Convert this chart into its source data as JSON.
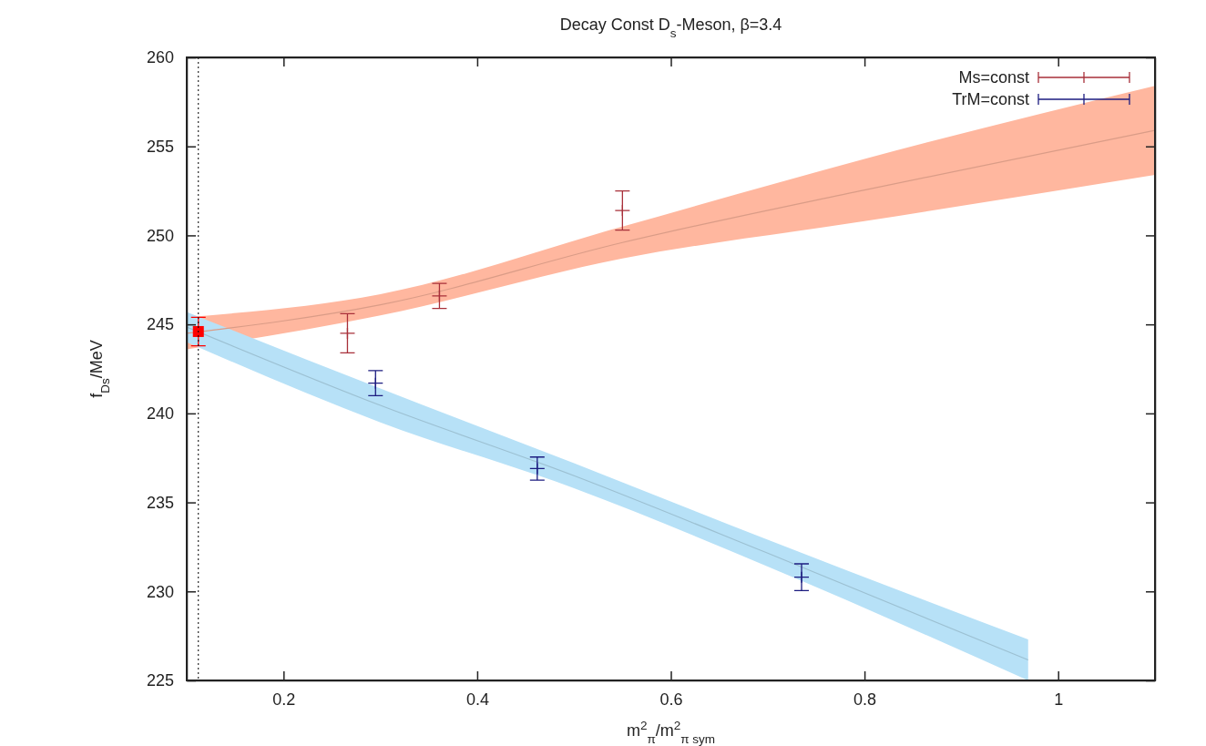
{
  "chart_data": {
    "type": "scatter",
    "title": "Decay Const D$_{s}$-Meson, β=3.4",
    "xlabel": "m$^{2}$$_{π}$/m$^{2}$$_{π sym}$",
    "ylabel": "f$_{Ds}$/MeV",
    "xlim": [
      0.1,
      1.1
    ],
    "xticks": [
      0.2,
      0.4,
      0.6,
      0.8,
      1
    ],
    "ylim": [
      225,
      260
    ],
    "yticks": [
      225,
      230,
      235,
      240,
      245,
      250,
      255,
      260
    ],
    "grid": false,
    "legend": "top right",
    "ref_lines": [
      {
        "axis": "x",
        "value": 0.112,
        "line_style": "dotted",
        "color": "#000000"
      }
    ],
    "series": [
      {
        "type": "line",
        "color": "#da9c87",
        "x": [
          0.1,
          0.3,
          0.55,
          0.8,
          1.1
        ],
        "values": [
          244.5,
          246.1,
          249.6,
          252.55,
          255.9
        ],
        "lower": [
          243.6,
          245.5,
          248.7,
          250.8,
          253.4
        ],
        "upper": [
          245.4,
          246.7,
          250.5,
          254.3,
          258.4
        ]
      },
      {
        "type": "line",
        "color": "#9cc0d2",
        "x": [
          0.1,
          0.3,
          0.5,
          0.7,
          0.969
        ],
        "values": [
          244.85,
          240.45,
          236.5,
          232.15,
          226.15
        ],
        "lower": [
          244.0,
          239.5,
          235.8,
          231.4,
          225
        ],
        "upper": [
          245.7,
          241.4,
          237.2,
          232.9,
          227.3
        ]
      },
      {
        "type": "scatter",
        "name": "Ms=const",
        "color": "#a8303a",
        "marker": "cross",
        "x": [
          0.266,
          0.361,
          0.55
        ],
        "values": [
          244.5,
          246.6,
          251.4
        ],
        "errors": [
          1.1,
          0.7,
          1.1
        ]
      },
      {
        "type": "scatter",
        "name": "TrM=const",
        "color": "#1c1c80",
        "marker": "cross",
        "x": [
          0.295,
          0.462,
          0.735
        ],
        "values": [
          241.7,
          236.9,
          230.8
        ],
        "errors": [
          0.7,
          0.65,
          0.75
        ]
      },
      {
        "color": "#ff0000",
        "marker": "square",
        "x": [
          0.112
        ],
        "values": [
          244.6
        ],
        "errors": [
          0.8
        ]
      }
    ]
  }
}
